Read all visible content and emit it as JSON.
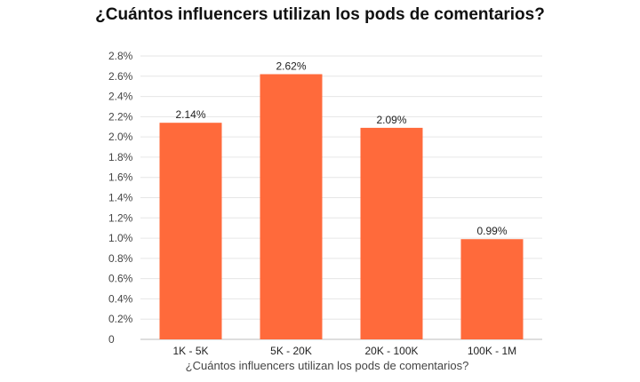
{
  "chart_data": {
    "type": "bar",
    "title": "¿Cuántos influencers utilizan los pods de comentarios?",
    "xlabel": "¿Cuántos influencers utilizan los pods de comentarios?",
    "ylabel": "",
    "categories": [
      "1K - 5K",
      "5K - 20K",
      "20K - 100K",
      "100K - 1M"
    ],
    "values": [
      2.14,
      2.62,
      2.09,
      0.99
    ],
    "data_labels": [
      "2.14%",
      "2.62%",
      "2.09%",
      "0.99%"
    ],
    "ylim": [
      0,
      2.8
    ],
    "y_ticks": [
      {
        "value": 0,
        "label": "0"
      },
      {
        "value": 0.2,
        "label": "0.2%"
      },
      {
        "value": 0.4,
        "label": "0.4%"
      },
      {
        "value": 0.6,
        "label": "0.6%"
      },
      {
        "value": 0.8,
        "label": "0.8%"
      },
      {
        "value": 1.0,
        "label": "1.0%"
      },
      {
        "value": 1.2,
        "label": "1.2%"
      },
      {
        "value": 1.4,
        "label": "1.4%"
      },
      {
        "value": 1.6,
        "label": "1.6%"
      },
      {
        "value": 1.8,
        "label": "1.8%"
      },
      {
        "value": 2.0,
        "label": "2.0%"
      },
      {
        "value": 2.2,
        "label": "2.2%"
      },
      {
        "value": 2.4,
        "label": "2.4%"
      },
      {
        "value": 2.6,
        "label": "2.6%"
      },
      {
        "value": 2.8,
        "label": "2.8%"
      }
    ],
    "grid": true,
    "legend": "none",
    "colors": {
      "bar": "#ff6a3b",
      "grid": "#e6e6e6",
      "text": "#444444",
      "title": "#111111"
    }
  }
}
